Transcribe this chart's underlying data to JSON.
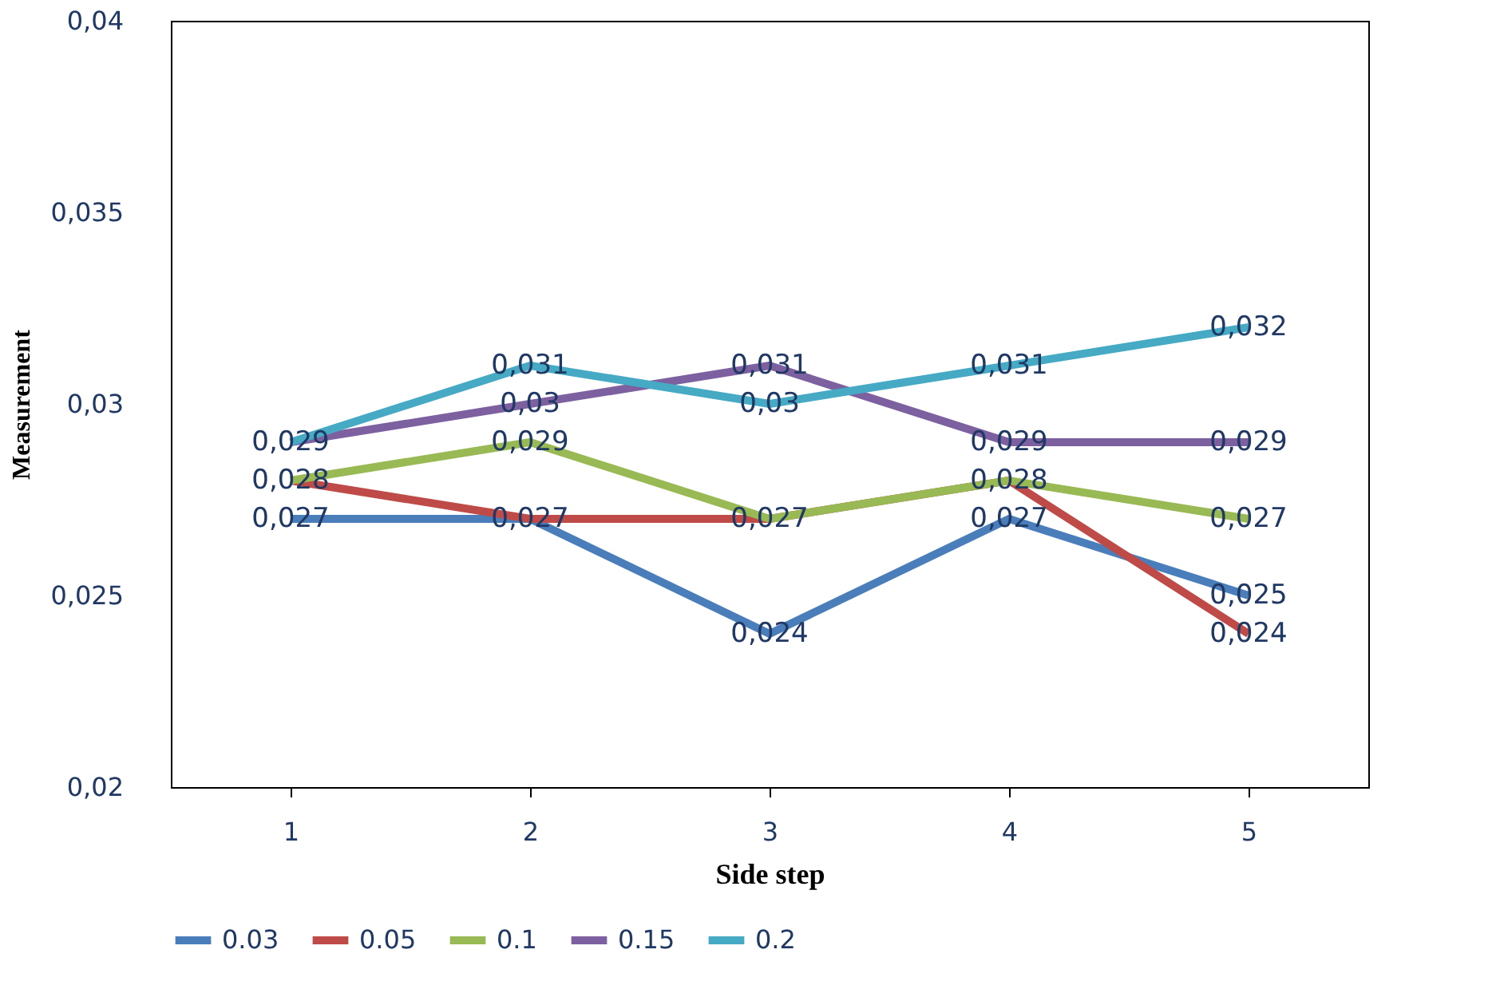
{
  "chart_data": {
    "type": "line",
    "xlabel": "Side step",
    "ylabel": "Measurement",
    "categories": [
      "1",
      "2",
      "3",
      "4",
      "5"
    ],
    "series": [
      {
        "name": "0.03",
        "color": "#4a7ebb",
        "values": [
          0.027,
          0.027,
          0.024,
          0.027,
          0.025
        ],
        "value_labels": [
          "0,027",
          null,
          "0,024",
          "0,027",
          "0,025"
        ]
      },
      {
        "name": "0.05",
        "color": "#be4b48",
        "values": [
          0.028,
          0.027,
          0.027,
          0.028,
          0.024
        ],
        "value_labels": [
          null,
          "0,027",
          null,
          null,
          "0,024"
        ]
      },
      {
        "name": "0.1",
        "color": "#98b954",
        "values": [
          0.028,
          0.029,
          0.027,
          0.028,
          0.027
        ],
        "value_labels": [
          "0,028",
          "0,029",
          "0,027",
          "0,028",
          "0,027"
        ]
      },
      {
        "name": "0.15",
        "color": "#7d60a0",
        "values": [
          0.029,
          0.03,
          0.031,
          0.029,
          0.029
        ],
        "value_labels": [
          null,
          "0,03",
          "0,031",
          "0,029",
          "0,029"
        ]
      },
      {
        "name": "0.2",
        "color": "#46aac5",
        "values": [
          0.029,
          0.031,
          0.03,
          0.031,
          0.032
        ],
        "value_labels": [
          "0,029",
          "0,031",
          "0,03",
          "0,031",
          "0,032"
        ]
      }
    ],
    "ylim": [
      0.02,
      0.04
    ],
    "yticks": [
      {
        "value": 0.02,
        "label": "0,02"
      },
      {
        "value": 0.025,
        "label": "0,025"
      },
      {
        "value": 0.03,
        "label": "0,03"
      },
      {
        "value": 0.035,
        "label": "0,035"
      },
      {
        "value": 0.04,
        "label": "0,04"
      }
    ],
    "grid": false,
    "legend": "bottom",
    "marker": "none",
    "line_style": "solid"
  }
}
